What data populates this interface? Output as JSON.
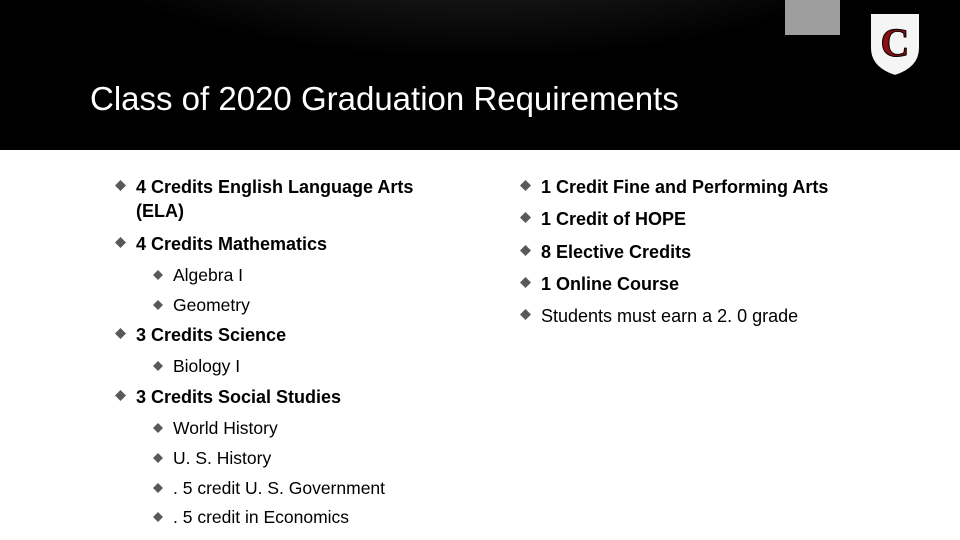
{
  "slide": {
    "title": "Class of 2020 Graduation Requirements",
    "title_color": "#ffffff",
    "title_fontsize": 33,
    "background_color": "#ffffff",
    "header_bg": "#000000",
    "bullet_fill": "#595959",
    "bullet_size": 11,
    "left": [
      {
        "text": "4 Credits English Language Arts (ELA)",
        "bold": true,
        "sub": []
      },
      {
        "text": "4 Credits Mathematics",
        "bold": true,
        "sub": [
          {
            "text": "Algebra I"
          },
          {
            "text": "Geometry"
          }
        ]
      },
      {
        "text": "3 Credits Science",
        "bold": true,
        "sub": [
          {
            "text": "Biology I"
          }
        ]
      },
      {
        "text": "3 Credits Social Studies",
        "bold": true,
        "sub": [
          {
            "text": "World History"
          },
          {
            "text": "U. S. History"
          },
          {
            "text": ". 5 credit U. S. Government"
          },
          {
            "text": ". 5 credit  in Economics"
          }
        ]
      }
    ],
    "right": [
      {
        "text": "1 Credit Fine and Performing Arts",
        "bold": true
      },
      {
        "text": "1 Credit of HOPE",
        "bold": true
      },
      {
        "text": "8 Elective Credits",
        "bold": true
      },
      {
        "text": "1 Online Course",
        "bold": true
      },
      {
        "text": "Students must earn a 2. 0 grade",
        "bold": false
      }
    ],
    "logo": {
      "letter": "C",
      "shield_fill": "#f5f5f5",
      "shield_border": "#000000",
      "letter_fill": "#8a0e12"
    }
  }
}
